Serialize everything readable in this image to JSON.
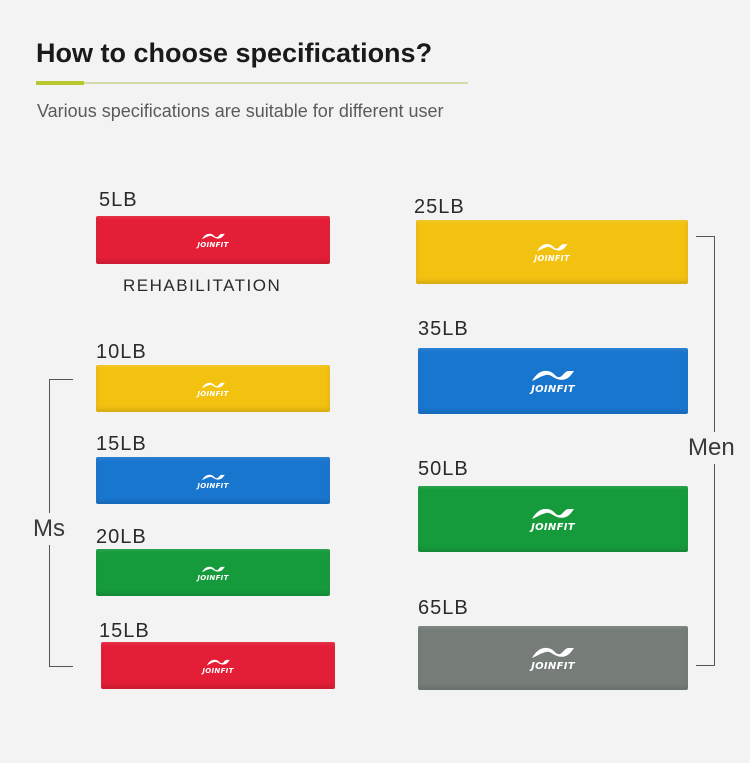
{
  "heading": {
    "title": "How to choose specifications?",
    "subtitle": "Various specifications are suitable for different user",
    "accent_color": "#b8c82c"
  },
  "brand": "JOINFIT",
  "rehab_label": "REHABILITATION",
  "groups": {
    "women": "Ms",
    "men": "Men"
  },
  "bands": [
    {
      "label": "5LB",
      "color": "#e41e37"
    },
    {
      "label": "10LB",
      "color": "#f3c211"
    },
    {
      "label": "15LB",
      "color": "#1976cf"
    },
    {
      "label": "20LB",
      "color": "#169b3c"
    },
    {
      "label": "15LB",
      "color": "#e41e37"
    },
    {
      "label": "25LB",
      "color": "#f3c211"
    },
    {
      "label": "35LB",
      "color": "#1976cf"
    },
    {
      "label": "50LB",
      "color": "#169b3c"
    },
    {
      "label": "65LB",
      "color": "#767d79"
    }
  ]
}
